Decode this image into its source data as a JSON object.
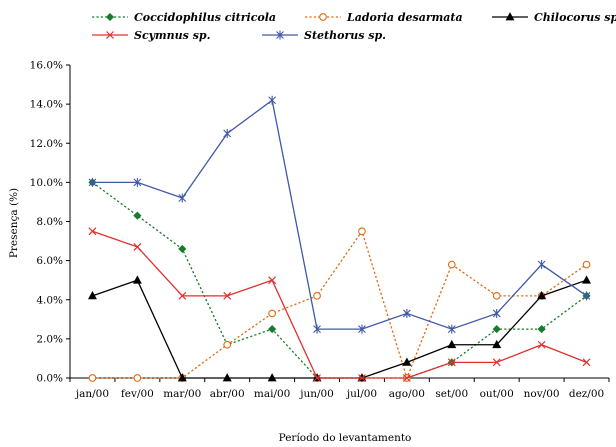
{
  "chart_data": {
    "type": "line",
    "categories": [
      "jan/00",
      "fev/00",
      "mar/00",
      "abr/00",
      "mai/00",
      "jun/00",
      "jul/00",
      "ago/00",
      "set/00",
      "out/00",
      "nov/00",
      "dez/00"
    ],
    "ylabel": "Presença (%)",
    "xlabel": "Período do levantamento",
    "ylim": [
      0,
      16
    ],
    "yticks": [
      "0.0%",
      "2.0%",
      "4.0%",
      "6.0%",
      "8.0%",
      "10.0%",
      "12.0%",
      "14.0%",
      "16.0%"
    ],
    "legend_position": "top",
    "series": [
      {
        "name": "Coccidophilus citricola",
        "color": "#1a7a2e",
        "line": "dotted",
        "marker": "diamond",
        "values": [
          10.0,
          8.3,
          6.6,
          1.7,
          2.5,
          0.0,
          0.0,
          0.0,
          0.8,
          2.5,
          2.5,
          4.2
        ]
      },
      {
        "name": "Ladoria desarmata",
        "color": "#e06a10",
        "line": "dotted",
        "marker": "circle",
        "values": [
          0.0,
          0.0,
          0.0,
          1.7,
          3.3,
          4.2,
          7.5,
          0.0,
          5.8,
          4.2,
          4.2,
          5.8
        ]
      },
      {
        "name": "Chilocorus sp.",
        "color": "#000000",
        "line": "solid",
        "marker": "triangle",
        "values": [
          4.2,
          5.0,
          0.0,
          0.0,
          0.0,
          0.0,
          0.0,
          0.8,
          1.7,
          1.7,
          4.2,
          5.0
        ]
      },
      {
        "name": "Scymnus sp.",
        "color": "#e03030",
        "line": "solid",
        "marker": "x",
        "values": [
          7.5,
          6.7,
          4.2,
          4.2,
          5.0,
          0.0,
          0.0,
          0.0,
          0.8,
          0.8,
          1.7,
          0.8
        ]
      },
      {
        "name": "Stethorus sp.",
        "color": "#4058a8",
        "line": "solid",
        "marker": "star",
        "values": [
          10.0,
          10.0,
          9.2,
          12.5,
          14.2,
          2.5,
          2.5,
          3.3,
          2.5,
          3.3,
          5.8,
          4.2
        ]
      }
    ]
  }
}
